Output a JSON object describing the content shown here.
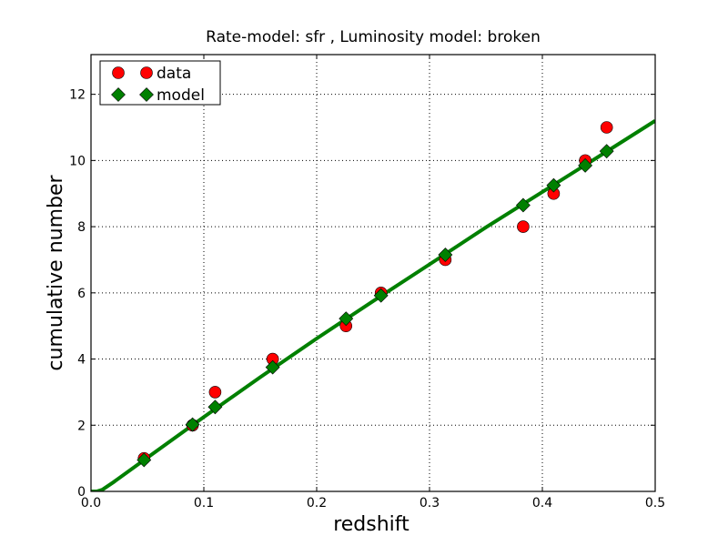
{
  "chart_data": {
    "type": "scatter",
    "title": "Rate-model: sfr , Luminosity model: broken",
    "xlabel": "redshift",
    "ylabel": "cumulative number",
    "xlim": [
      0.0,
      0.5
    ],
    "ylim": [
      0,
      13.2
    ],
    "x_ticks": [
      "0.0",
      "0.1",
      "0.2",
      "0.3",
      "0.4",
      "0.5"
    ],
    "y_ticks": [
      "0",
      "2",
      "4",
      "6",
      "8",
      "10",
      "12"
    ],
    "grid": true,
    "legend_position": "top-left",
    "series": [
      {
        "name": "data",
        "marker": "circle",
        "color": "#ff0000",
        "x": [
          0.047,
          0.09,
          0.11,
          0.161,
          0.226,
          0.257,
          0.314,
          0.383,
          0.41,
          0.438,
          0.457
        ],
        "y": [
          1,
          2,
          3,
          4,
          5,
          6,
          7,
          8,
          9,
          10,
          11
        ]
      },
      {
        "name": "model",
        "marker": "diamond",
        "color": "#008000",
        "x": [
          0.047,
          0.09,
          0.11,
          0.161,
          0.226,
          0.257,
          0.314,
          0.383,
          0.41,
          0.438,
          0.457
        ],
        "y": [
          0.95,
          2.02,
          2.55,
          3.75,
          5.22,
          5.92,
          7.15,
          8.65,
          9.25,
          9.85,
          10.28
        ]
      }
    ],
    "curve": {
      "color": "#008000",
      "x": [
        0.0,
        0.005,
        0.01,
        0.02,
        0.05,
        0.1,
        0.15,
        0.2,
        0.25,
        0.3,
        0.35,
        0.4,
        0.45,
        0.5
      ],
      "y": [
        0.0,
        0.0,
        0.05,
        0.28,
        1.02,
        2.25,
        3.45,
        4.62,
        5.75,
        6.86,
        7.98,
        9.05,
        10.12,
        11.2
      ]
    }
  }
}
